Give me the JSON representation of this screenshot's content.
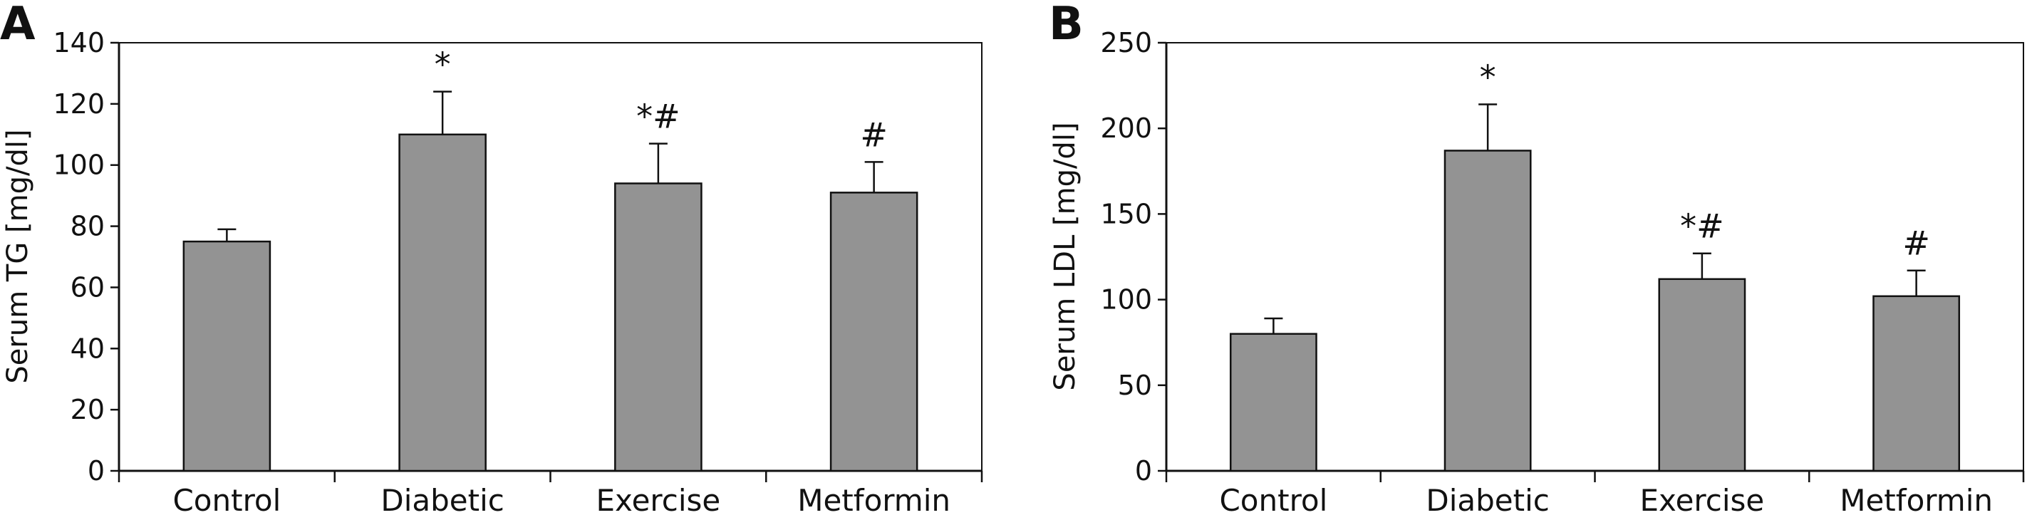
{
  "chart_data": [
    {
      "type": "bar",
      "panel": "A",
      "categories": [
        "Control",
        "Diabetic",
        "Exercise",
        "Metformin"
      ],
      "values": [
        75,
        110,
        94,
        91
      ],
      "errors": [
        4,
        14,
        13,
        10
      ],
      "annotations": [
        "",
        "*",
        "*#",
        "#"
      ],
      "title": "",
      "xlabel": "",
      "ylabel": "Serum TG [mg/dl]",
      "ylim": [
        0,
        140
      ],
      "yticks": [
        0,
        20,
        40,
        60,
        80,
        100,
        120,
        140
      ],
      "bar_color": "#939393",
      "grid": false,
      "legend": "none"
    },
    {
      "type": "bar",
      "panel": "B",
      "categories": [
        "Control",
        "Diabetic",
        "Exercise",
        "Metformin"
      ],
      "values": [
        80,
        187,
        112,
        102
      ],
      "errors": [
        9,
        27,
        15,
        15
      ],
      "annotations": [
        "",
        "*",
        "*#",
        "#"
      ],
      "title": "",
      "xlabel": "",
      "ylabel": "Serum LDL [mg/dl]",
      "ylim": [
        0,
        250
      ],
      "yticks": [
        0,
        50,
        100,
        150,
        200,
        250
      ],
      "bar_color": "#939393",
      "grid": false,
      "legend": "none"
    }
  ]
}
